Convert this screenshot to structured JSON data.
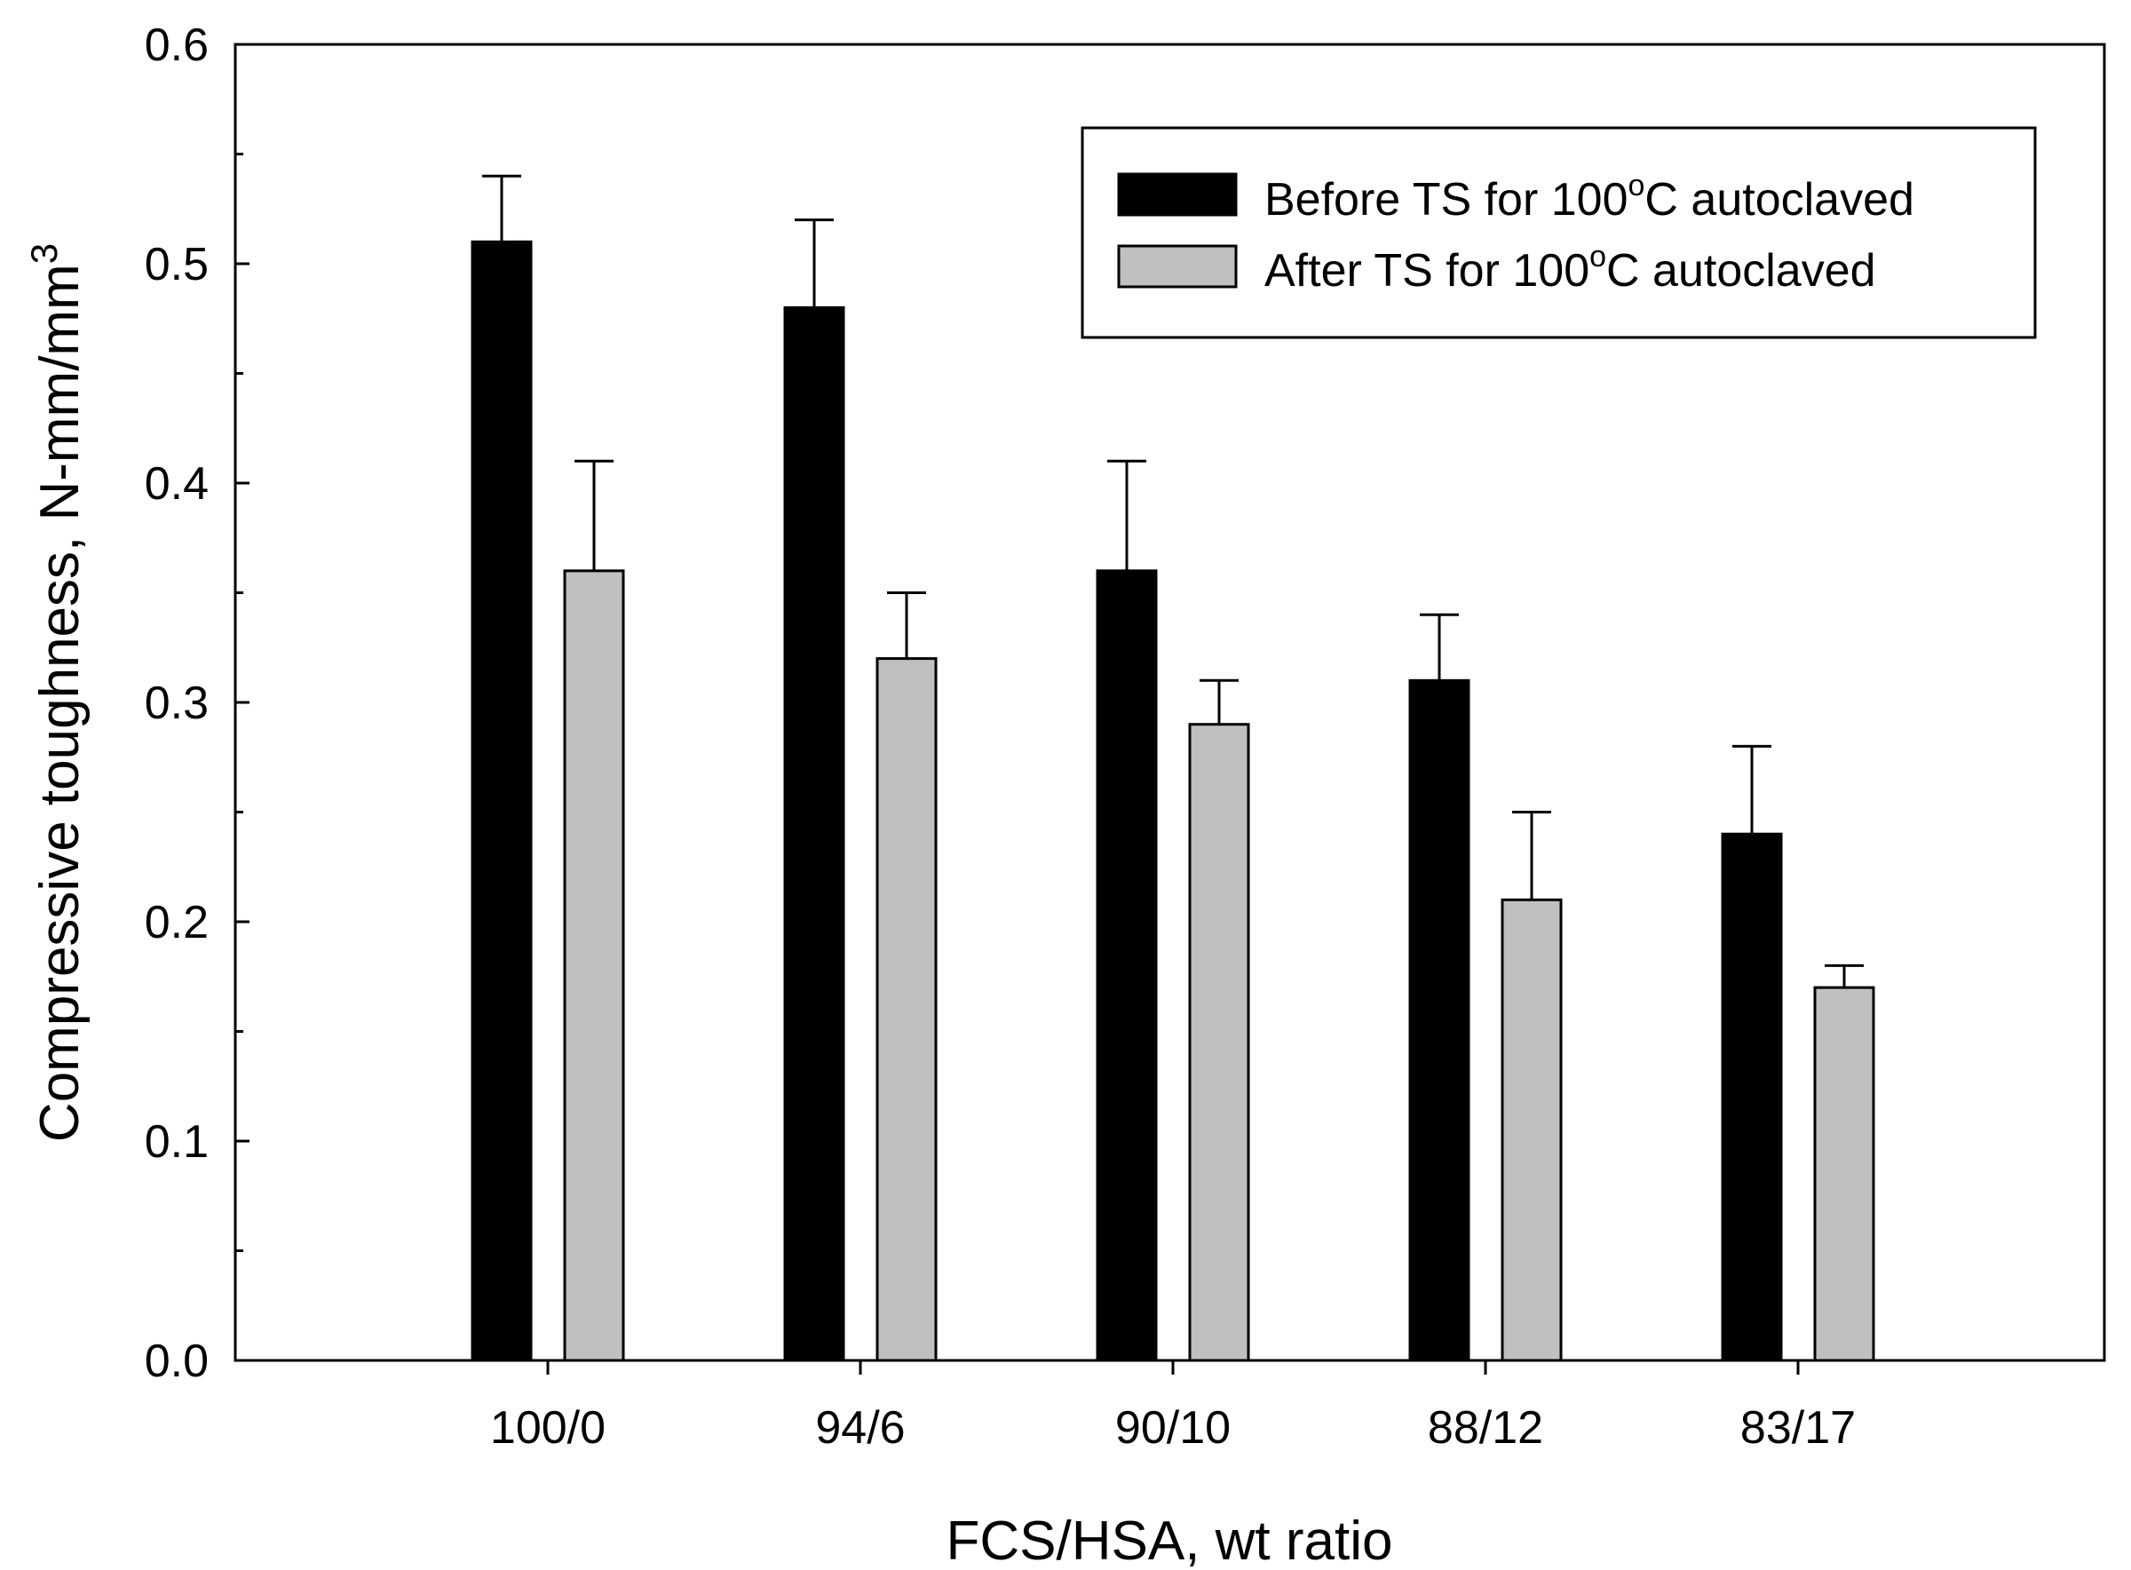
{
  "chart_data": {
    "type": "bar",
    "title": "",
    "xlabel": "FCS/HSA, wt ratio",
    "ylabel": {
      "main": "Compressive toughness, N-mm/mm",
      "superscript": "3"
    },
    "categories": [
      "100/0",
      "94/6",
      "90/10",
      "88/12",
      "83/17"
    ],
    "ylim": [
      0.0,
      0.6
    ],
    "yticks": [
      "0.0",
      "0.1",
      "0.2",
      "0.3",
      "0.4",
      "0.5",
      "0.6"
    ],
    "legend_position": "top-right",
    "series": [
      {
        "name": "Before TS for 100°C autoclaved",
        "label_parts": [
          "Before TS for 100",
          "o",
          "C autoclaved"
        ],
        "color": "#000000",
        "values": [
          0.51,
          0.48,
          0.36,
          0.31,
          0.24
        ],
        "errors": [
          0.03,
          0.04,
          0.05,
          0.03,
          0.04
        ]
      },
      {
        "name": "After TS for 100°C autoclaved",
        "label_parts": [
          "After TS for 100",
          "o",
          "C autoclaved"
        ],
        "color": "#c0c0c0",
        "values": [
          0.36,
          0.32,
          0.29,
          0.21,
          0.17
        ],
        "errors": [
          0.05,
          0.03,
          0.02,
          0.04,
          0.01
        ]
      }
    ]
  }
}
